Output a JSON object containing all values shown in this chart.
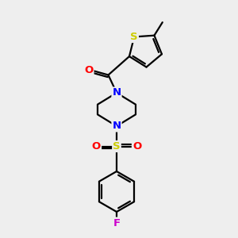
{
  "background_color": "#eeeeee",
  "atom_colors": {
    "N": "#0000ff",
    "O": "#ff0000",
    "S_thio": "#cccc00",
    "S_sulfonyl": "#cccc00",
    "F": "#cc00cc"
  },
  "line_color": "#000000",
  "line_width": 1.6,
  "figsize": [
    3.0,
    3.0
  ],
  "dpi": 100,
  "xlim": [
    0,
    10
  ],
  "ylim": [
    0,
    10
  ]
}
